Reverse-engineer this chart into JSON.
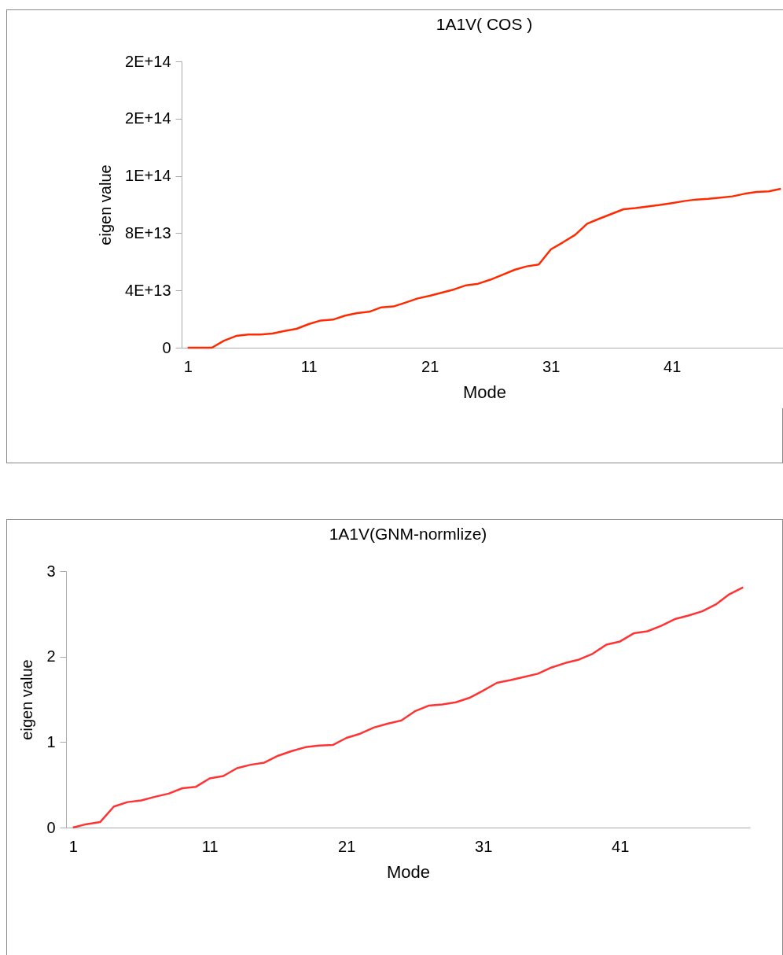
{
  "chart_data": [
    {
      "type": "line",
      "title": "1A1V( COS )",
      "xlabel": "Mode",
      "ylabel": "eigen value",
      "categories": [
        "1",
        null,
        null,
        null,
        null,
        null,
        null,
        null,
        null,
        null,
        "11",
        null,
        null,
        null,
        null,
        null,
        null,
        null,
        null,
        null,
        "21",
        null,
        null,
        null,
        null,
        null,
        null,
        null,
        null,
        null,
        "31",
        null,
        null,
        null,
        null,
        null,
        null,
        null,
        null,
        null,
        "41",
        null,
        null,
        null,
        null,
        null,
        null,
        null,
        null,
        null
      ],
      "series": [
        {
          "color": "#ff2a00",
          "values": [
            0,
            0,
            0,
            4900000000000.0,
            8200000000000.0,
            9200000000000.0,
            9200000000000.0,
            9900000000000.0,
            11700000000000.0,
            13200000000000.0,
            16500000000000.0,
            19000000000000.0,
            19600000000000.0,
            22400000000000.0,
            24200000000000.0,
            25100000000000.0,
            28200000000000.0,
            28800000000000.0,
            31500000000000.0,
            34400000000000.0,
            36300000000000.0,
            38500000000000.0,
            40700000000000.0,
            43600000000000.0,
            44700000000000.0,
            47500000000000.0,
            50900000000000.0,
            54400000000000.0,
            56800000000000.0,
            58100000000000.0,
            68700000000000.0,
            73600000000000.0,
            78800000000000.0,
            86600000000000.0,
            90100000000000.0,
            93400000000000.0,
            96700000000000.0,
            97500000000000.0,
            98600000000000.0,
            99700000000000.0,
            101000000000000.0,
            102400000000000.0,
            103500000000000.0,
            104000000000000.0,
            104800000000000.0,
            105700000000000.0,
            107500000000000.0,
            108800000000000.0,
            109200000000000.0,
            111000000000000.0
          ]
        }
      ],
      "ylim": [
        0,
        200000000000000.0
      ],
      "yticks": [
        0,
        {
          "value": 40000000000000.0,
          "label": "4E+13"
        },
        {
          "value": 80000000000000.0,
          "label": "8E+13"
        },
        {
          "value": 120000000000000.0,
          "label": "1E+14"
        },
        {
          "value": 160000000000000.0,
          "label": "2E+14"
        },
        {
          "value": 200000000000000.0,
          "label": "2E+14"
        }
      ]
    },
    {
      "type": "line",
      "title": "1A1V(GNM-normlize)",
      "xlabel": "Mode",
      "ylabel": "eigen value",
      "categories": [
        "1",
        null,
        null,
        null,
        null,
        null,
        null,
        null,
        null,
        null,
        "11",
        null,
        null,
        null,
        null,
        null,
        null,
        null,
        null,
        null,
        "21",
        null,
        null,
        null,
        null,
        null,
        null,
        null,
        null,
        null,
        "31",
        null,
        null,
        null,
        null,
        null,
        null,
        null,
        null,
        null,
        "41",
        null,
        null,
        null,
        null,
        null,
        null,
        null,
        null,
        null
      ],
      "series": [
        {
          "color": "#ff3333",
          "values": [
            0,
            0.04,
            0.065,
            0.246,
            0.298,
            0.317,
            0.36,
            0.397,
            0.46,
            0.477,
            0.575,
            0.603,
            0.695,
            0.735,
            0.76,
            0.84,
            0.895,
            0.94,
            0.96,
            0.966,
            1.049,
            1.098,
            1.17,
            1.215,
            1.252,
            1.36,
            1.426,
            1.44,
            1.466,
            1.518,
            1.603,
            1.693,
            1.726,
            1.763,
            1.8,
            1.873,
            1.925,
            1.965,
            2.033,
            2.14,
            2.177,
            2.272,
            2.296,
            2.36,
            2.438,
            2.48,
            2.53,
            2.61,
            2.73,
            2.81
          ]
        }
      ],
      "ylim": [
        0,
        3
      ],
      "yticks": [
        0,
        1,
        2,
        3
      ]
    }
  ]
}
